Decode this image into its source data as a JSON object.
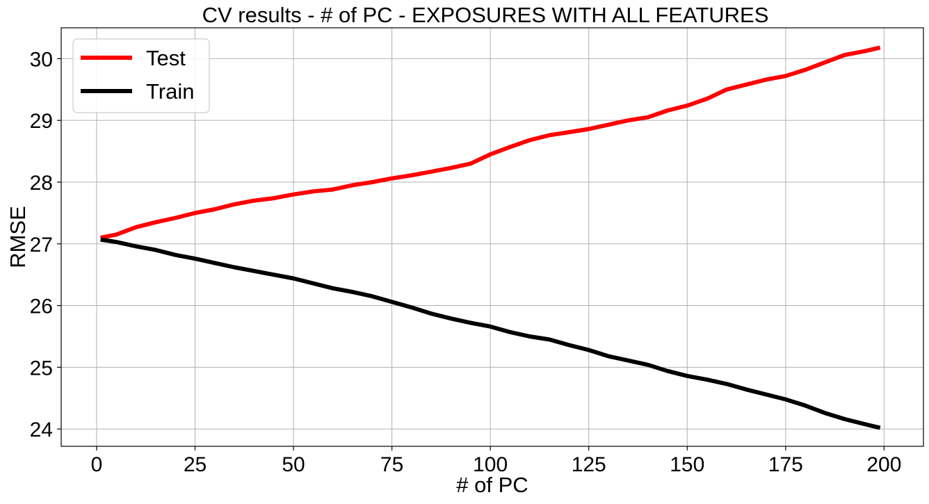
{
  "chart_data": {
    "type": "line",
    "title": "CV results - # of PC - EXPOSURES WITH ALL FEATURES",
    "xlabel": "# of PC",
    "ylabel": "RMSE",
    "xlim": [
      -9,
      210
    ],
    "ylim": [
      23.72,
      30.5
    ],
    "xticks": [
      0,
      25,
      50,
      75,
      100,
      125,
      150,
      175,
      200
    ],
    "yticks": [
      24,
      25,
      26,
      27,
      28,
      29,
      30
    ],
    "grid": true,
    "legend_position": "top-left",
    "series": [
      {
        "name": "Test",
        "color": "#ff0000",
        "x": [
          1,
          5,
          10,
          15,
          20,
          25,
          30,
          35,
          40,
          45,
          50,
          55,
          60,
          65,
          70,
          75,
          80,
          85,
          90,
          95,
          100,
          105,
          110,
          115,
          120,
          125,
          130,
          135,
          140,
          145,
          150,
          155,
          160,
          165,
          170,
          175,
          180,
          185,
          190,
          195,
          199
        ],
        "y": [
          27.1,
          27.15,
          27.27,
          27.35,
          27.42,
          27.5,
          27.56,
          27.64,
          27.7,
          27.74,
          27.8,
          27.85,
          27.88,
          27.95,
          28.0,
          28.06,
          28.11,
          28.17,
          28.23,
          28.3,
          28.45,
          28.57,
          28.68,
          28.76,
          28.81,
          28.86,
          28.93,
          29.0,
          29.05,
          29.16,
          29.24,
          29.35,
          29.5,
          29.58,
          29.66,
          29.72,
          29.82,
          29.94,
          30.06,
          30.12,
          30.18
        ]
      },
      {
        "name": "Train",
        "color": "#000000",
        "x": [
          1,
          5,
          10,
          15,
          20,
          25,
          30,
          35,
          40,
          45,
          50,
          55,
          60,
          65,
          70,
          75,
          80,
          85,
          90,
          95,
          100,
          105,
          110,
          115,
          120,
          125,
          130,
          135,
          140,
          145,
          150,
          155,
          160,
          165,
          170,
          175,
          180,
          185,
          190,
          195,
          199
        ],
        "y": [
          27.07,
          27.03,
          26.96,
          26.9,
          26.82,
          26.76,
          26.69,
          26.62,
          26.56,
          26.5,
          26.44,
          26.36,
          26.28,
          26.22,
          26.15,
          26.06,
          25.97,
          25.87,
          25.79,
          25.72,
          25.66,
          25.57,
          25.5,
          25.45,
          25.36,
          25.28,
          25.18,
          25.11,
          25.04,
          24.94,
          24.86,
          24.8,
          24.73,
          24.64,
          24.56,
          24.48,
          24.38,
          24.26,
          24.16,
          24.08,
          24.02
        ]
      }
    ]
  }
}
